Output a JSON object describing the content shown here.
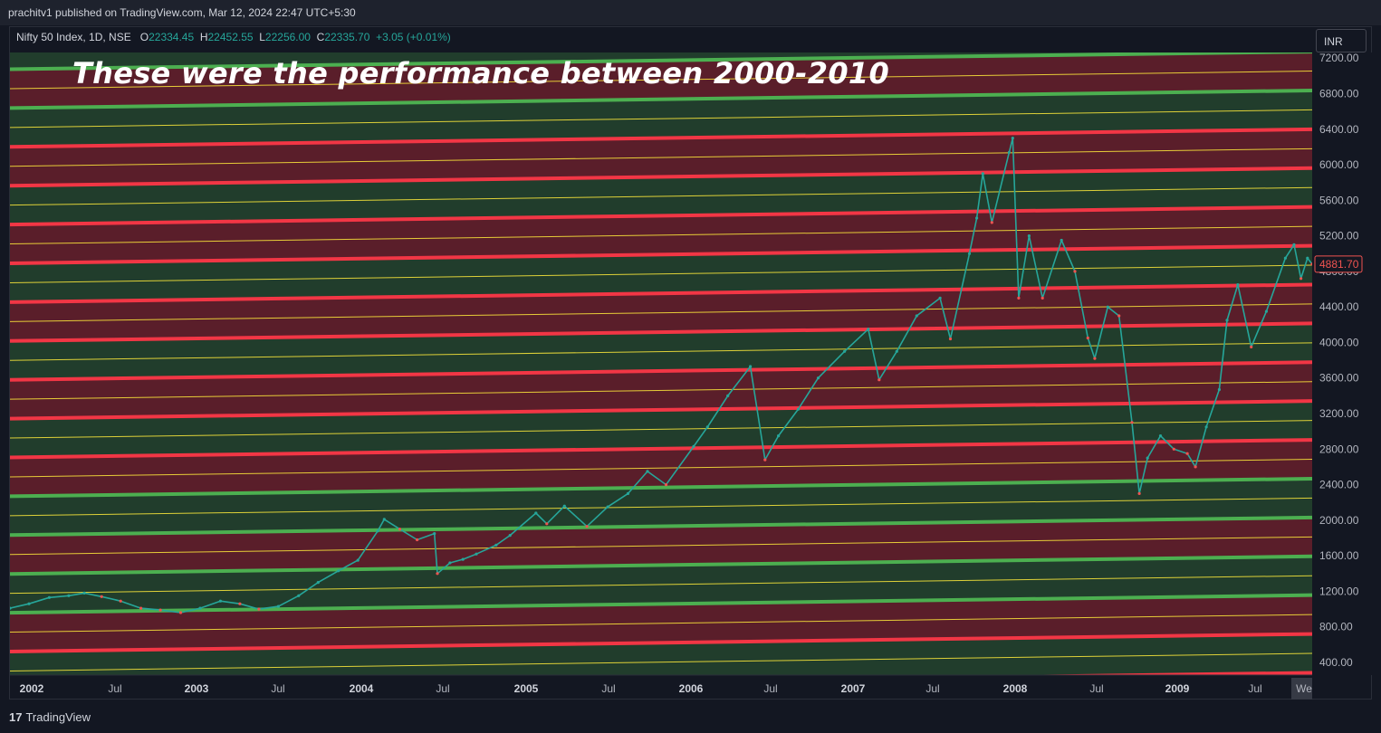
{
  "header": {
    "publisher_line": "prachitv1 published on TradingView.com, Mar 12, 2024 22:47 UTC+5:30"
  },
  "legend": {
    "symbol": "Nifty 50 Index, 1D, NSE",
    "open_label": "O",
    "open": "22334.45",
    "high_label": "H",
    "high": "22452.55",
    "low_label": "L",
    "low": "22256.00",
    "close_label": "C",
    "close": "22335.70",
    "change": "+3.05 (+0.01%)"
  },
  "annotation_title": "These were the performance between 2000-2010",
  "currency_button": "INR",
  "footer": {
    "brand": "TradingView",
    "logo_glyph": "17"
  },
  "colors": {
    "background": "#131722",
    "up_candle": "#26a69a",
    "down_candle": "#ef5350",
    "red_band": "#5a1e2a",
    "green_band": "#213d2c",
    "red_line": "#f23645",
    "green_line": "#4caf50",
    "yellow_line": "#ffeb3b"
  },
  "chart_data": {
    "type": "line",
    "title": "Nifty 50 Index, 1D, NSE",
    "y_axis_ticks": [
      "7200.00",
      "6800.00",
      "6400.00",
      "6000.00",
      "5600.00",
      "5200.00",
      "4800.00",
      "4400.00",
      "4000.00",
      "3600.00",
      "3200.00",
      "2800.00",
      "2400.00",
      "2000.00",
      "1600.00",
      "1200.00",
      "800.00",
      "400.00"
    ],
    "x_axis_ticks": [
      "2002",
      "Jul",
      "2003",
      "Jul",
      "2004",
      "Jul",
      "2005",
      "Jul",
      "2006",
      "Jul",
      "2007",
      "Jul",
      "2008",
      "Jul",
      "2009",
      "Jul",
      "We"
    ],
    "last_price_label": "4881.70",
    "ylim": [
      260,
      7400
    ],
    "series": [
      {
        "points": [
          [
            "2001-09-01",
            1010
          ],
          [
            "2001-10-15",
            1060
          ],
          [
            "2001-12-01",
            1130
          ],
          [
            "2002-01-15",
            1150
          ],
          [
            "2002-02-20",
            1180
          ],
          [
            "2002-04-01",
            1140
          ],
          [
            "2002-05-15",
            1090
          ],
          [
            "2002-07-01",
            1010
          ],
          [
            "2002-08-15",
            990
          ],
          [
            "2002-10-01",
            960
          ],
          [
            "2002-11-15",
            1010
          ],
          [
            "2003-01-01",
            1090
          ],
          [
            "2003-02-15",
            1060
          ],
          [
            "2003-03-31",
            1000
          ],
          [
            "2003-05-15",
            1030
          ],
          [
            "2003-07-01",
            1150
          ],
          [
            "2003-08-15",
            1300
          ],
          [
            "2003-10-01",
            1430
          ],
          [
            "2003-11-15",
            1550
          ],
          [
            "2003-12-31",
            1880
          ],
          [
            "2004-01-15",
            2010
          ],
          [
            "2004-02-20",
            1900
          ],
          [
            "2004-03-31",
            1780
          ],
          [
            "2004-05-10",
            1850
          ],
          [
            "2004-05-17",
            1400
          ],
          [
            "2004-06-15",
            1520
          ],
          [
            "2004-07-15",
            1560
          ],
          [
            "2004-08-15",
            1620
          ],
          [
            "2004-09-30",
            1720
          ],
          [
            "2004-11-01",
            1830
          ],
          [
            "2004-12-31",
            2080
          ],
          [
            "2005-01-25",
            1960
          ],
          [
            "2005-03-07",
            2160
          ],
          [
            "2005-04-28",
            1930
          ],
          [
            "2005-06-15",
            2150
          ],
          [
            "2005-08-01",
            2300
          ],
          [
            "2005-09-15",
            2550
          ],
          [
            "2005-10-28",
            2400
          ],
          [
            "2005-12-31",
            2830
          ],
          [
            "2006-02-01",
            3050
          ],
          [
            "2006-03-20",
            3400
          ],
          [
            "2006-05-11",
            3730
          ],
          [
            "2006-06-14",
            2680
          ],
          [
            "2006-07-15",
            2950
          ],
          [
            "2006-08-30",
            3250
          ],
          [
            "2006-10-15",
            3600
          ],
          [
            "2006-12-15",
            3900
          ],
          [
            "2007-02-08",
            4150
          ],
          [
            "2007-03-05",
            3580
          ],
          [
            "2007-04-15",
            3900
          ],
          [
            "2007-05-31",
            4300
          ],
          [
            "2007-07-24",
            4500
          ],
          [
            "2007-08-17",
            4040
          ],
          [
            "2007-09-30",
            5000
          ],
          [
            "2007-10-17",
            5400
          ],
          [
            "2007-10-31",
            5900
          ],
          [
            "2007-11-21",
            5350
          ],
          [
            "2007-12-31",
            6140
          ],
          [
            "2008-01-08",
            6300
          ],
          [
            "2008-01-22",
            4500
          ],
          [
            "2008-02-15",
            5200
          ],
          [
            "2008-03-17",
            4500
          ],
          [
            "2008-04-30",
            5150
          ],
          [
            "2008-05-31",
            4800
          ],
          [
            "2008-06-30",
            4050
          ],
          [
            "2008-07-16",
            3820
          ],
          [
            "2008-08-15",
            4400
          ],
          [
            "2008-09-10",
            4300
          ],
          [
            "2008-10-10",
            3100
          ],
          [
            "2008-10-27",
            2300
          ],
          [
            "2008-11-15",
            2700
          ],
          [
            "2008-12-15",
            2950
          ],
          [
            "2009-01-15",
            2800
          ],
          [
            "2009-02-15",
            2750
          ],
          [
            "2009-03-06",
            2600
          ],
          [
            "2009-03-31",
            3050
          ],
          [
            "2009-04-30",
            3470
          ],
          [
            "2009-05-18",
            4250
          ],
          [
            "2009-06-12",
            4650
          ],
          [
            "2009-07-13",
            3950
          ],
          [
            "2009-08-17",
            4350
          ],
          [
            "2009-09-30",
            4950
          ],
          [
            "2009-10-20",
            5100
          ],
          [
            "2009-11-05",
            4720
          ],
          [
            "2009-11-20",
            4950
          ],
          [
            "2009-12-01",
            4881.7
          ]
        ]
      }
    ]
  }
}
